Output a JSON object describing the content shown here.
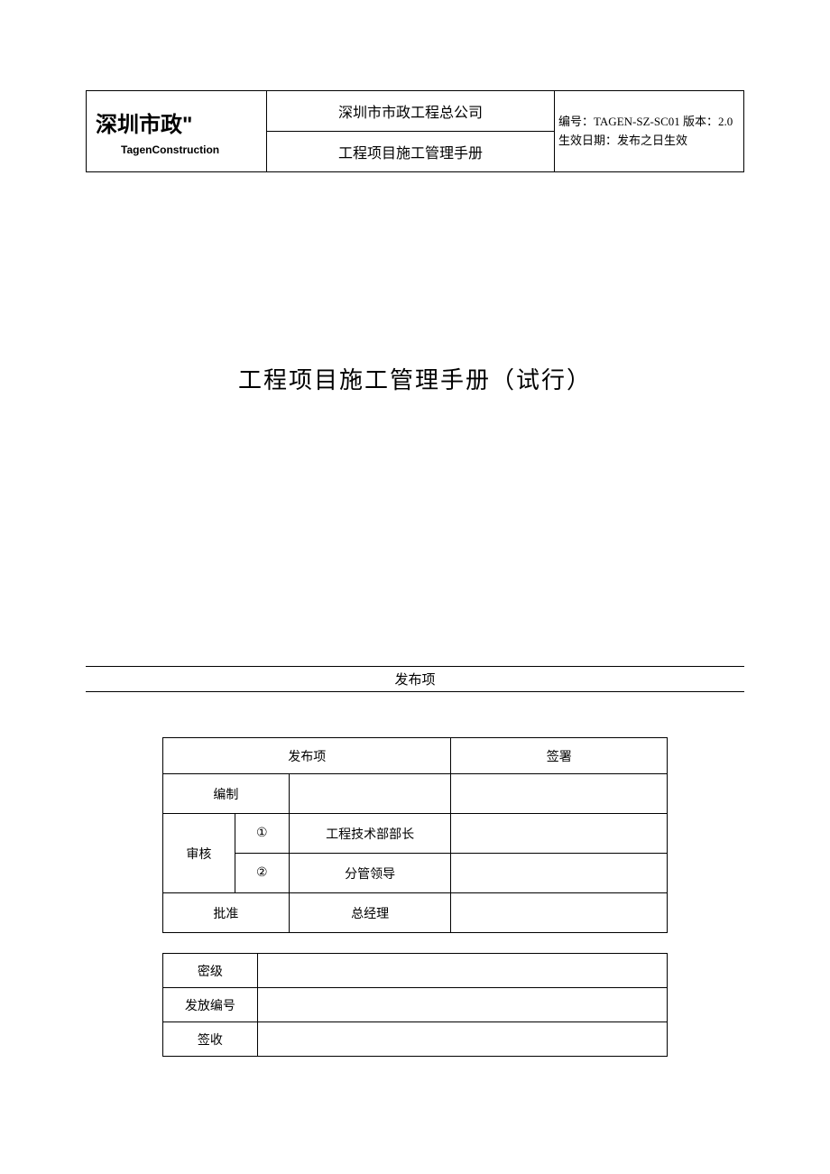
{
  "header": {
    "logo_main": "深圳市政\"",
    "logo_sub": "TagenConstruction",
    "company": "深圳市市政工程总公司",
    "doc_title": "工程项目施工管理手册",
    "code_label": "编号：",
    "code_value": "TAGEN-SZ-SC01",
    "version_label": "版本：",
    "version_value": "2.0",
    "date_label": "生效日期：",
    "date_value": "发布之日生效"
  },
  "main_title": "工程项目施工管理手册（试行）",
  "section_heading": "发布项",
  "approval": {
    "header_left": "发布项",
    "header_right": "签署",
    "row_compile": "编制",
    "row_review": "审核",
    "review_1_no": "①",
    "review_1_role": "工程技术部部长",
    "review_2_no": "②",
    "review_2_role": "分管领导",
    "row_approve": "批准",
    "approve_role": "总经理"
  },
  "info": {
    "secret_level": "密级",
    "issue_number": "发放编号",
    "sign_receive": "签收"
  }
}
